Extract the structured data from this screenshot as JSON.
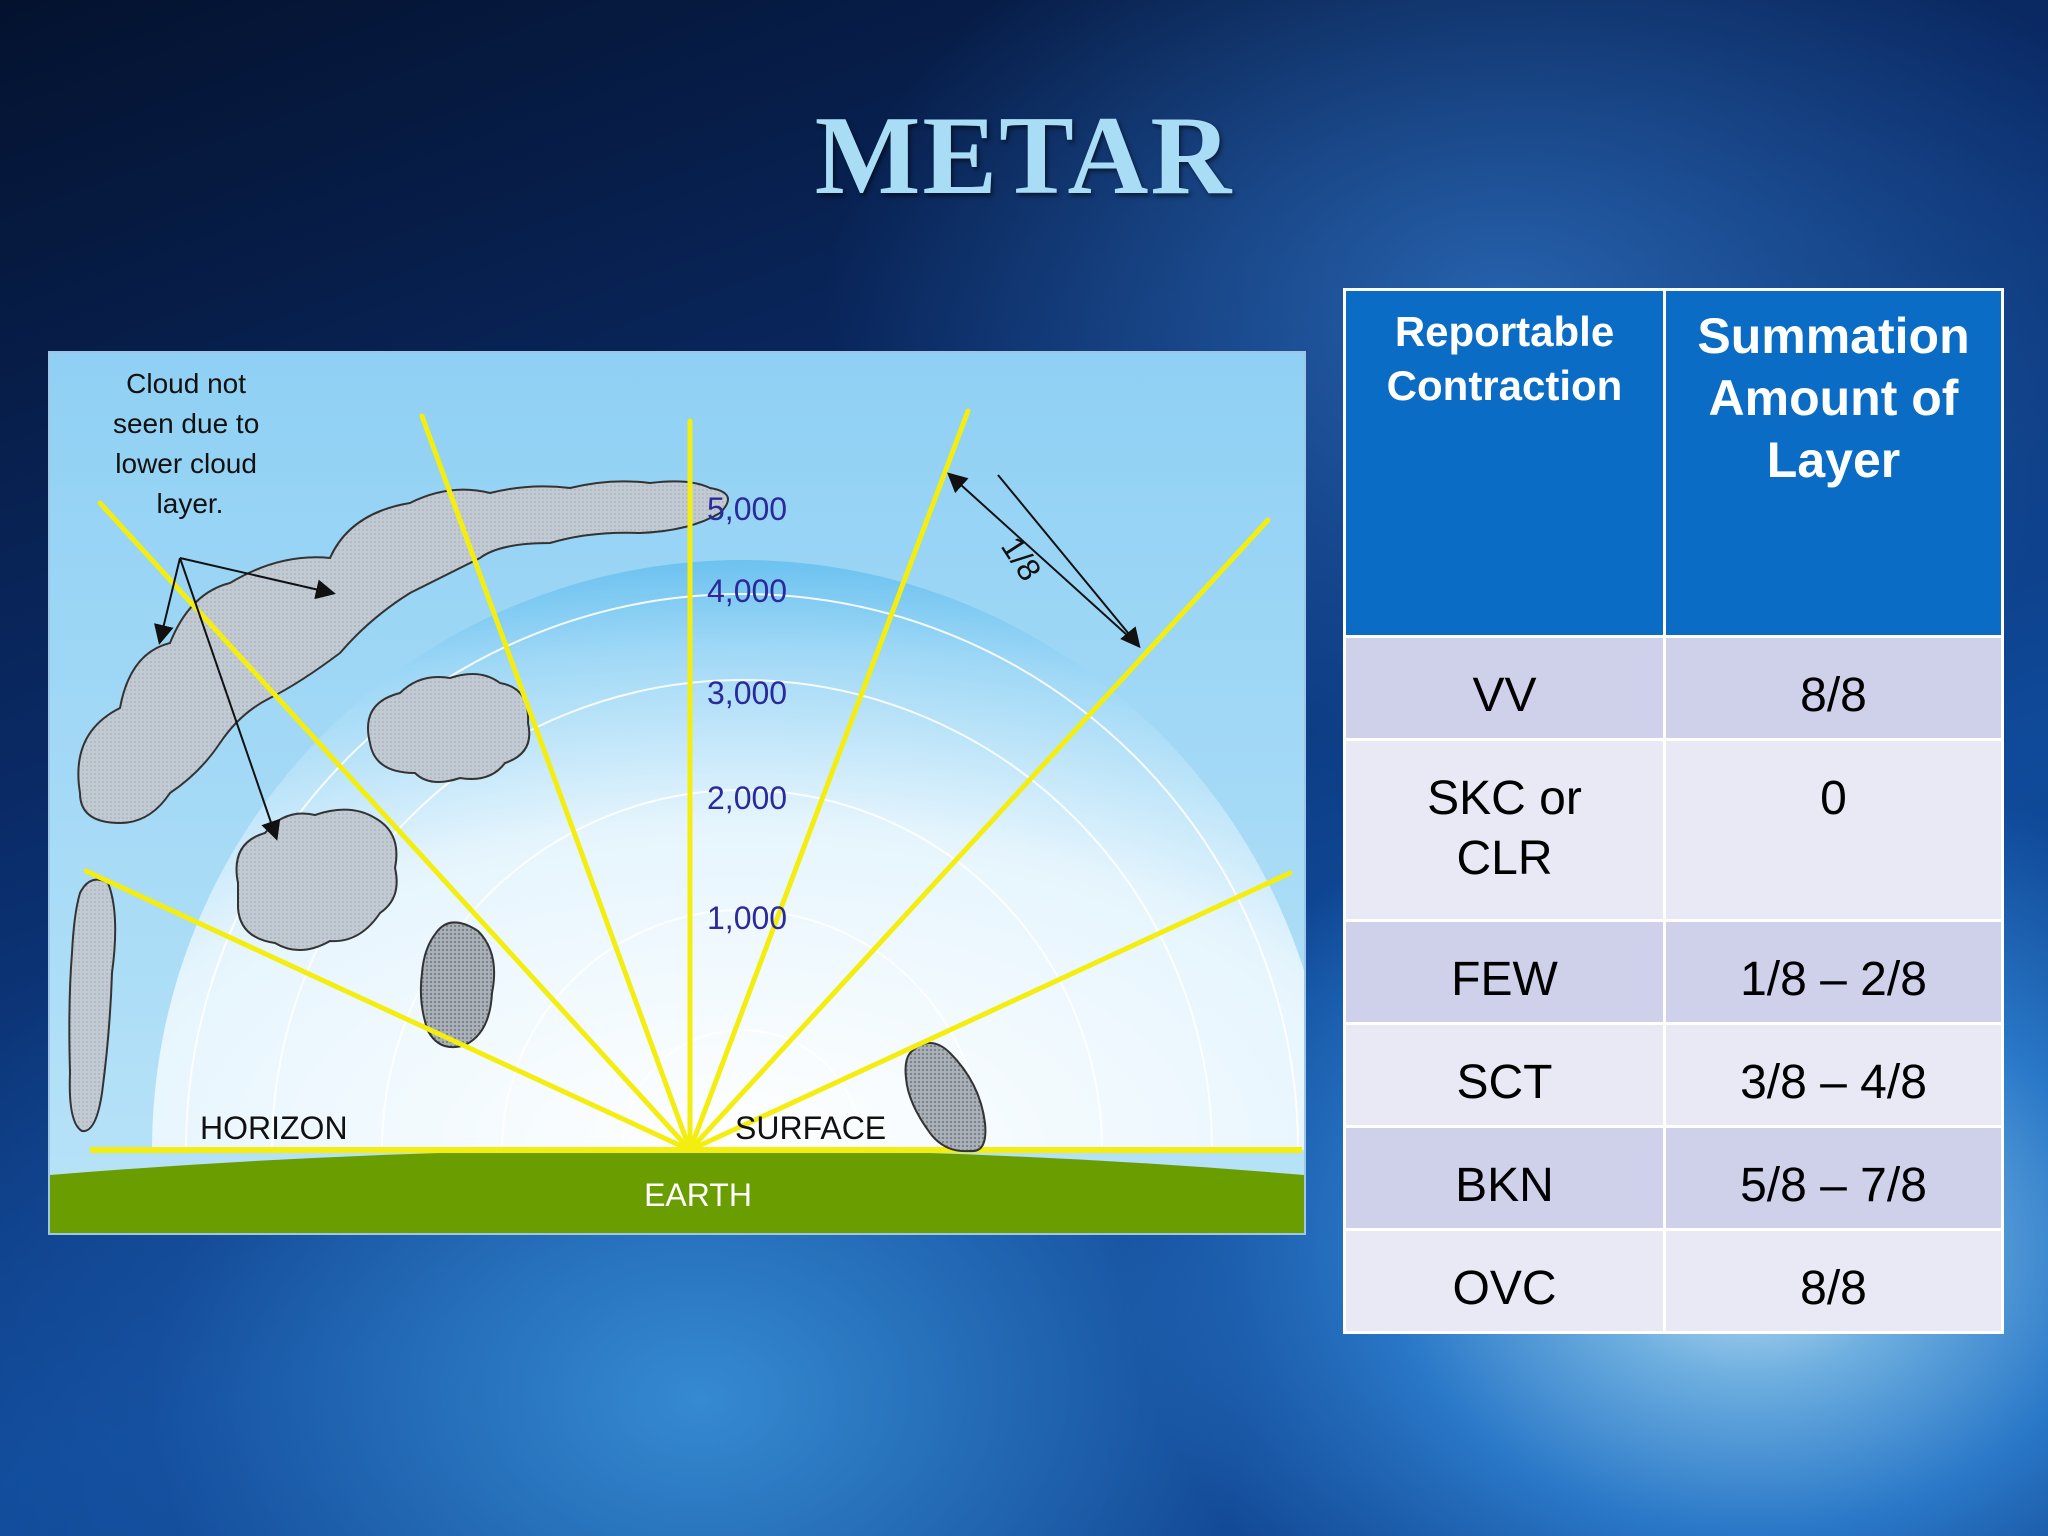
{
  "slide": {
    "title": "METAR"
  },
  "diagram": {
    "callout": [
      "Cloud not",
      "seen due to",
      "lower cloud",
      "layer."
    ],
    "altitudes": [
      "5,000",
      "4,000",
      "3,000",
      "2,000",
      "1,000"
    ],
    "fraction_label": "1/8",
    "horizon_label": "HORIZON",
    "surface_label": "SURFACE",
    "earth_label": "EARTH",
    "colors": {
      "sky": "#8fd0f4",
      "ray": "#f4ee10",
      "earth": "#6a9e00",
      "cloud": "#c4ccd4",
      "altitude_text": "#2a2a9a"
    }
  },
  "table": {
    "headers": [
      "Reportable Contraction",
      "Summation Amount of Layer"
    ],
    "rows": [
      {
        "contraction": "VV",
        "amount": "8/8"
      },
      {
        "contraction": "SKC or CLR",
        "amount": "0"
      },
      {
        "contraction": "FEW",
        "amount": "1/8 – 2/8"
      },
      {
        "contraction": "SCT",
        "amount": "3/8 – 4/8"
      },
      {
        "contraction": "BKN",
        "amount": "5/8 – 7/8"
      },
      {
        "contraction": "OVC",
        "amount": "8/8"
      }
    ],
    "colors": {
      "header": "#0a6cc4",
      "row_odd": "#cfd0ea",
      "row_even": "#e8e9f4"
    }
  }
}
